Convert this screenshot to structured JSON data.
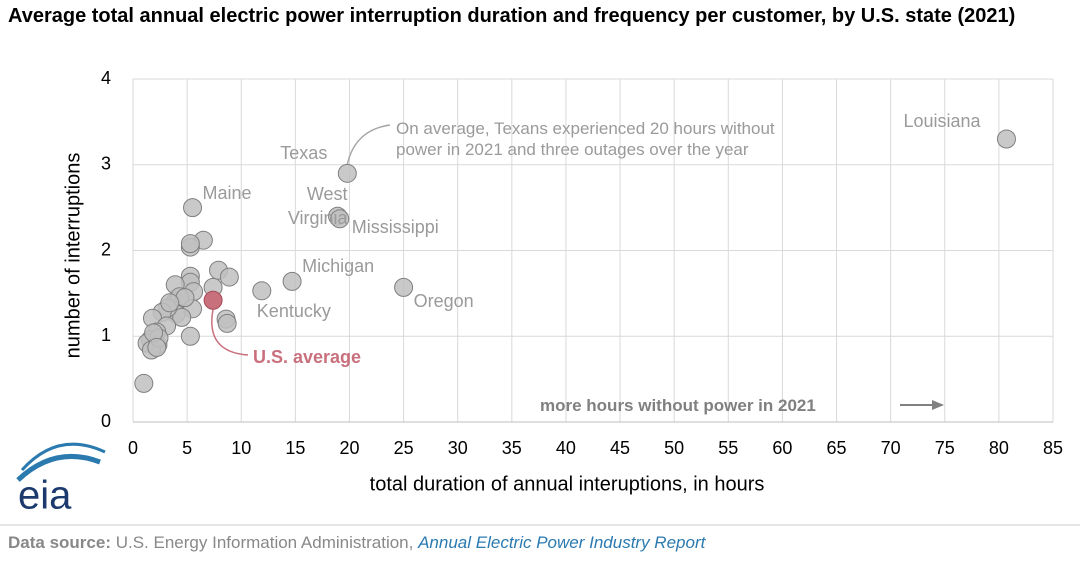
{
  "chart_data": {
    "type": "scatter",
    "title": "Average total annual electric power interruption duration and frequency per customer, by U.S. state (2021)",
    "xlabel": "total duration of annual interuptions, in hours",
    "ylabel": "number of interruptions",
    "xlim": [
      0,
      85
    ],
    "xticks": [
      0,
      5,
      10,
      15,
      20,
      25,
      30,
      35,
      40,
      45,
      50,
      55,
      60,
      65,
      70,
      75,
      80,
      85
    ],
    "ylim": [
      0,
      4
    ],
    "yticks": [
      0,
      1,
      2,
      3,
      4
    ],
    "grid": true,
    "series": [
      {
        "color": "#bfbfbf",
        "x": [
          80.7,
          19.8,
          18.9,
          19.1,
          14.7,
          11.9,
          25.0,
          5.5,
          6.5,
          5.3,
          5.3,
          7.9,
          8.9,
          5.3,
          5.3,
          7.4,
          5.6,
          3.9,
          3.9,
          4.3,
          5.5,
          4.0,
          4.5,
          3.2,
          2.7,
          1.8,
          3.1,
          8.6,
          8.7,
          5.3,
          2.2,
          1.6,
          1.3,
          2.3,
          1.7,
          1.0,
          2.4,
          1.9,
          2.2,
          4.8,
          3.4
        ],
        "values": [
          3.3,
          2.9,
          2.4,
          2.37,
          1.64,
          1.53,
          1.57,
          2.5,
          2.12,
          2.04,
          2.08,
          1.77,
          1.69,
          1.7,
          1.63,
          1.57,
          1.52,
          1.6,
          1.4,
          1.46,
          1.32,
          1.26,
          1.22,
          1.33,
          1.28,
          1.21,
          1.12,
          1.2,
          1.15,
          1.0,
          1.05,
          0.96,
          0.92,
          0.9,
          0.84,
          0.45,
          0.98,
          1.04,
          0.87,
          1.45,
          1.39
        ],
        "point_labels": [
          "Louisiana",
          "Texas",
          "West\nVirginia",
          "Mississippi",
          "Michigan",
          "Kentucky",
          "Oregon",
          "Maine",
          null,
          null,
          null,
          null,
          null,
          null,
          null,
          null,
          null,
          null,
          null,
          null,
          null,
          null,
          null,
          null,
          null,
          null,
          null,
          null,
          null,
          null,
          null,
          null,
          null,
          null,
          null,
          null,
          null,
          null,
          null,
          null,
          null
        ]
      },
      {
        "name": "U.S. average",
        "color": "#c9707d",
        "x": [
          7.4
        ],
        "values": [
          1.42
        ]
      }
    ],
    "annotations": [
      "On average, Texans experienced 20 hours without\npower in 2021 and three outages over the year",
      "more hours without power in 2021"
    ]
  },
  "logo": "eia",
  "source": {
    "label": "Data source:",
    "text": "U.S. Energy Information Administration,",
    "link": "Annual Electric Power Industry Report"
  }
}
